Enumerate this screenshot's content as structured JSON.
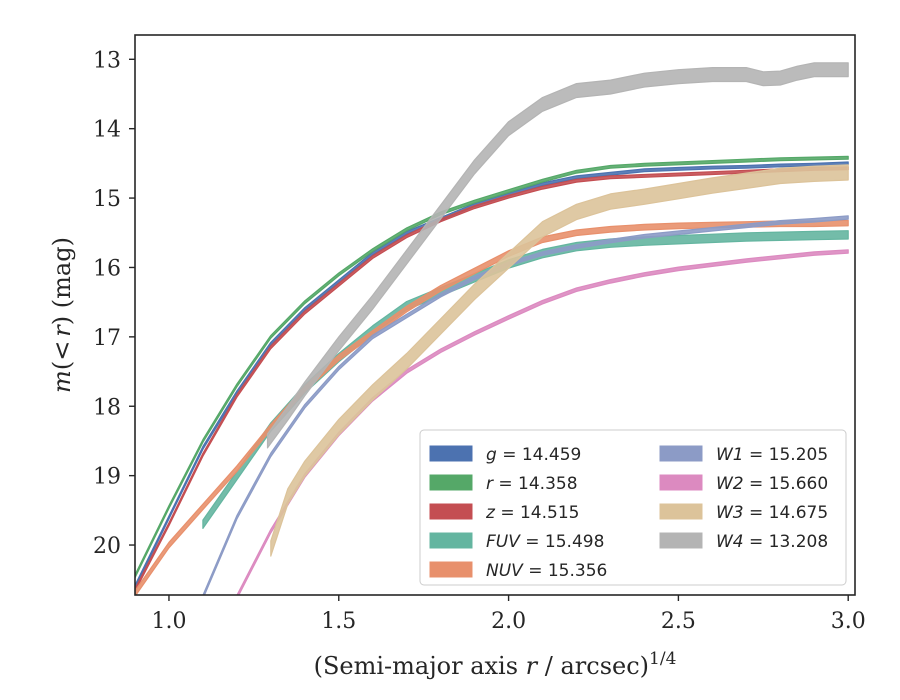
{
  "chart_data": {
    "type": "line",
    "title": "",
    "xlabel": "(Semi-major axis r / arcsec)^{1/4}",
    "xlabel_parts": {
      "main": "(Semi-major axis ",
      "var": "r",
      "rest": " / arcsec)",
      "sup": "1/4"
    },
    "ylabel": "m(<r) (mag)",
    "ylabel_parts": {
      "var": "m",
      "open": "(",
      "lt": "<",
      "r": "r",
      "close": ") (mag)"
    },
    "xlim": [
      0.9,
      3.02
    ],
    "ylim": [
      20.72,
      12.65
    ],
    "y_inverted": true,
    "xticks": [
      "1.0",
      "1.5",
      "2.0",
      "2.5",
      "3.0"
    ],
    "xtick_values": [
      1.0,
      1.5,
      2.0,
      2.5,
      3.0
    ],
    "yticks": [
      "13",
      "14",
      "15",
      "16",
      "17",
      "18",
      "19",
      "20"
    ],
    "ytick_values": [
      13,
      14,
      15,
      16,
      17,
      18,
      19,
      20
    ],
    "grid": false,
    "legend_position": "lower-right",
    "series": [
      {
        "name": "g",
        "legend_label": "g = 14.459",
        "color": "#4c72b0",
        "band": 0.04,
        "x": [
          0.9,
          1.0,
          1.1,
          1.2,
          1.3,
          1.4,
          1.5,
          1.6,
          1.7,
          1.8,
          1.9,
          2.0,
          2.1,
          2.2,
          2.3,
          2.4,
          2.5,
          2.6,
          2.7,
          2.8,
          2.9,
          3.0
        ],
        "y": [
          20.6,
          19.6,
          18.6,
          17.8,
          17.1,
          16.6,
          16.2,
          15.8,
          15.5,
          15.3,
          15.1,
          14.95,
          14.8,
          14.7,
          14.65,
          14.6,
          14.58,
          14.56,
          14.55,
          14.53,
          14.52,
          14.5
        ]
      },
      {
        "name": "r",
        "legend_label": "r = 14.358",
        "color": "#55a868",
        "band": 0.04,
        "x": [
          0.9,
          1.0,
          1.1,
          1.2,
          1.3,
          1.4,
          1.5,
          1.6,
          1.7,
          1.8,
          1.9,
          2.0,
          2.1,
          2.2,
          2.3,
          2.4,
          2.5,
          2.6,
          2.7,
          2.8,
          2.9,
          3.0
        ],
        "y": [
          20.45,
          19.45,
          18.5,
          17.7,
          17.0,
          16.5,
          16.1,
          15.75,
          15.45,
          15.22,
          15.05,
          14.9,
          14.75,
          14.62,
          14.55,
          14.52,
          14.5,
          14.48,
          14.46,
          14.44,
          14.43,
          14.42
        ]
      },
      {
        "name": "z",
        "legend_label": "z = 14.515",
        "color": "#c44e52",
        "band": 0.04,
        "x": [
          0.9,
          1.0,
          1.1,
          1.2,
          1.3,
          1.4,
          1.5,
          1.6,
          1.7,
          1.8,
          1.9,
          2.0,
          2.1,
          2.2,
          2.3,
          2.4,
          2.5,
          2.6,
          2.7,
          2.8,
          2.9,
          3.0
        ],
        "y": [
          20.65,
          19.7,
          18.7,
          17.85,
          17.15,
          16.65,
          16.25,
          15.85,
          15.55,
          15.32,
          15.13,
          14.98,
          14.85,
          14.75,
          14.7,
          14.68,
          14.66,
          14.64,
          14.62,
          14.6,
          14.58,
          14.57
        ]
      },
      {
        "name": "FUV",
        "legend_label": "FUV = 15.498",
        "color": "#64b5a0",
        "band": 0.12,
        "x": [
          1.1,
          1.2,
          1.3,
          1.4,
          1.5,
          1.6,
          1.7,
          1.8,
          1.9,
          2.0,
          2.1,
          2.2,
          2.3,
          2.4,
          2.5,
          2.6,
          2.7,
          2.8,
          2.9,
          3.0
        ],
        "y": [
          19.7,
          19.0,
          18.3,
          17.75,
          17.3,
          16.9,
          16.55,
          16.35,
          16.15,
          15.95,
          15.8,
          15.7,
          15.65,
          15.62,
          15.6,
          15.58,
          15.56,
          15.55,
          15.54,
          15.53
        ]
      },
      {
        "name": "NUV",
        "legend_label": "NUV = 15.356",
        "color": "#e8906c",
        "band": 0.08,
        "x": [
          0.9,
          1.0,
          1.1,
          1.2,
          1.3,
          1.4,
          1.5,
          1.6,
          1.7,
          1.8,
          1.9,
          2.0,
          2.1,
          2.2,
          2.3,
          2.4,
          2.5,
          2.6,
          2.7,
          2.8,
          2.9,
          3.0
        ],
        "y": [
          20.7,
          20.0,
          19.45,
          18.9,
          18.3,
          17.75,
          17.3,
          16.95,
          16.6,
          16.3,
          16.05,
          15.8,
          15.6,
          15.5,
          15.45,
          15.42,
          15.4,
          15.39,
          15.38,
          15.37,
          15.37,
          15.36
        ]
      },
      {
        "name": "W1",
        "legend_label": "W1 = 15.205",
        "color": "#8c9bc6",
        "band": 0.05,
        "x": [
          1.1,
          1.2,
          1.3,
          1.4,
          1.5,
          1.6,
          1.7,
          1.8,
          1.9,
          2.0,
          2.1,
          2.2,
          2.3,
          2.4,
          2.5,
          2.6,
          2.7,
          2.8,
          2.9,
          3.0
        ],
        "y": [
          20.75,
          19.6,
          18.7,
          18.0,
          17.45,
          17.0,
          16.7,
          16.4,
          16.15,
          15.95,
          15.8,
          15.7,
          15.62,
          15.55,
          15.5,
          15.45,
          15.4,
          15.35,
          15.32,
          15.28
        ]
      },
      {
        "name": "W2",
        "legend_label": "W2 = 15.660",
        "color": "#dc8ac0",
        "band": 0.05,
        "x": [
          1.2,
          1.3,
          1.4,
          1.5,
          1.6,
          1.7,
          1.8,
          1.9,
          2.0,
          2.1,
          2.2,
          2.3,
          2.4,
          2.5,
          2.6,
          2.7,
          2.8,
          2.9,
          3.0
        ],
        "y": [
          20.75,
          19.8,
          19.0,
          18.4,
          17.9,
          17.5,
          17.2,
          16.95,
          16.72,
          16.5,
          16.32,
          16.2,
          16.1,
          16.02,
          15.96,
          15.9,
          15.85,
          15.8,
          15.77
        ]
      },
      {
        "name": "W3",
        "legend_label": "W3 = 14.675",
        "color": "#dcc39a",
        "band": 0.22,
        "x": [
          1.3,
          1.35,
          1.4,
          1.5,
          1.6,
          1.7,
          1.8,
          1.9,
          2.0,
          2.1,
          2.2,
          2.3,
          2.4,
          2.5,
          2.6,
          2.7,
          2.8,
          2.9,
          3.0
        ],
        "y": [
          20.05,
          19.3,
          18.9,
          18.3,
          17.8,
          17.35,
          16.85,
          16.35,
          15.9,
          15.45,
          15.2,
          15.05,
          14.98,
          14.9,
          14.82,
          14.75,
          14.68,
          14.65,
          14.63
        ]
      },
      {
        "name": "W4",
        "legend_label": "W4 = 13.208",
        "color": "#b4b4b4",
        "band": 0.2,
        "x": [
          1.29,
          1.35,
          1.4,
          1.5,
          1.6,
          1.7,
          1.8,
          1.9,
          2.0,
          2.1,
          2.2,
          2.3,
          2.4,
          2.5,
          2.6,
          2.7,
          2.75,
          2.8,
          2.85,
          2.9,
          3.0
        ],
        "y": [
          18.5,
          18.1,
          17.75,
          17.1,
          16.5,
          15.85,
          15.2,
          14.55,
          14.0,
          13.65,
          13.45,
          13.4,
          13.3,
          13.25,
          13.22,
          13.22,
          13.28,
          13.27,
          13.2,
          13.15,
          13.15
        ]
      }
    ]
  }
}
